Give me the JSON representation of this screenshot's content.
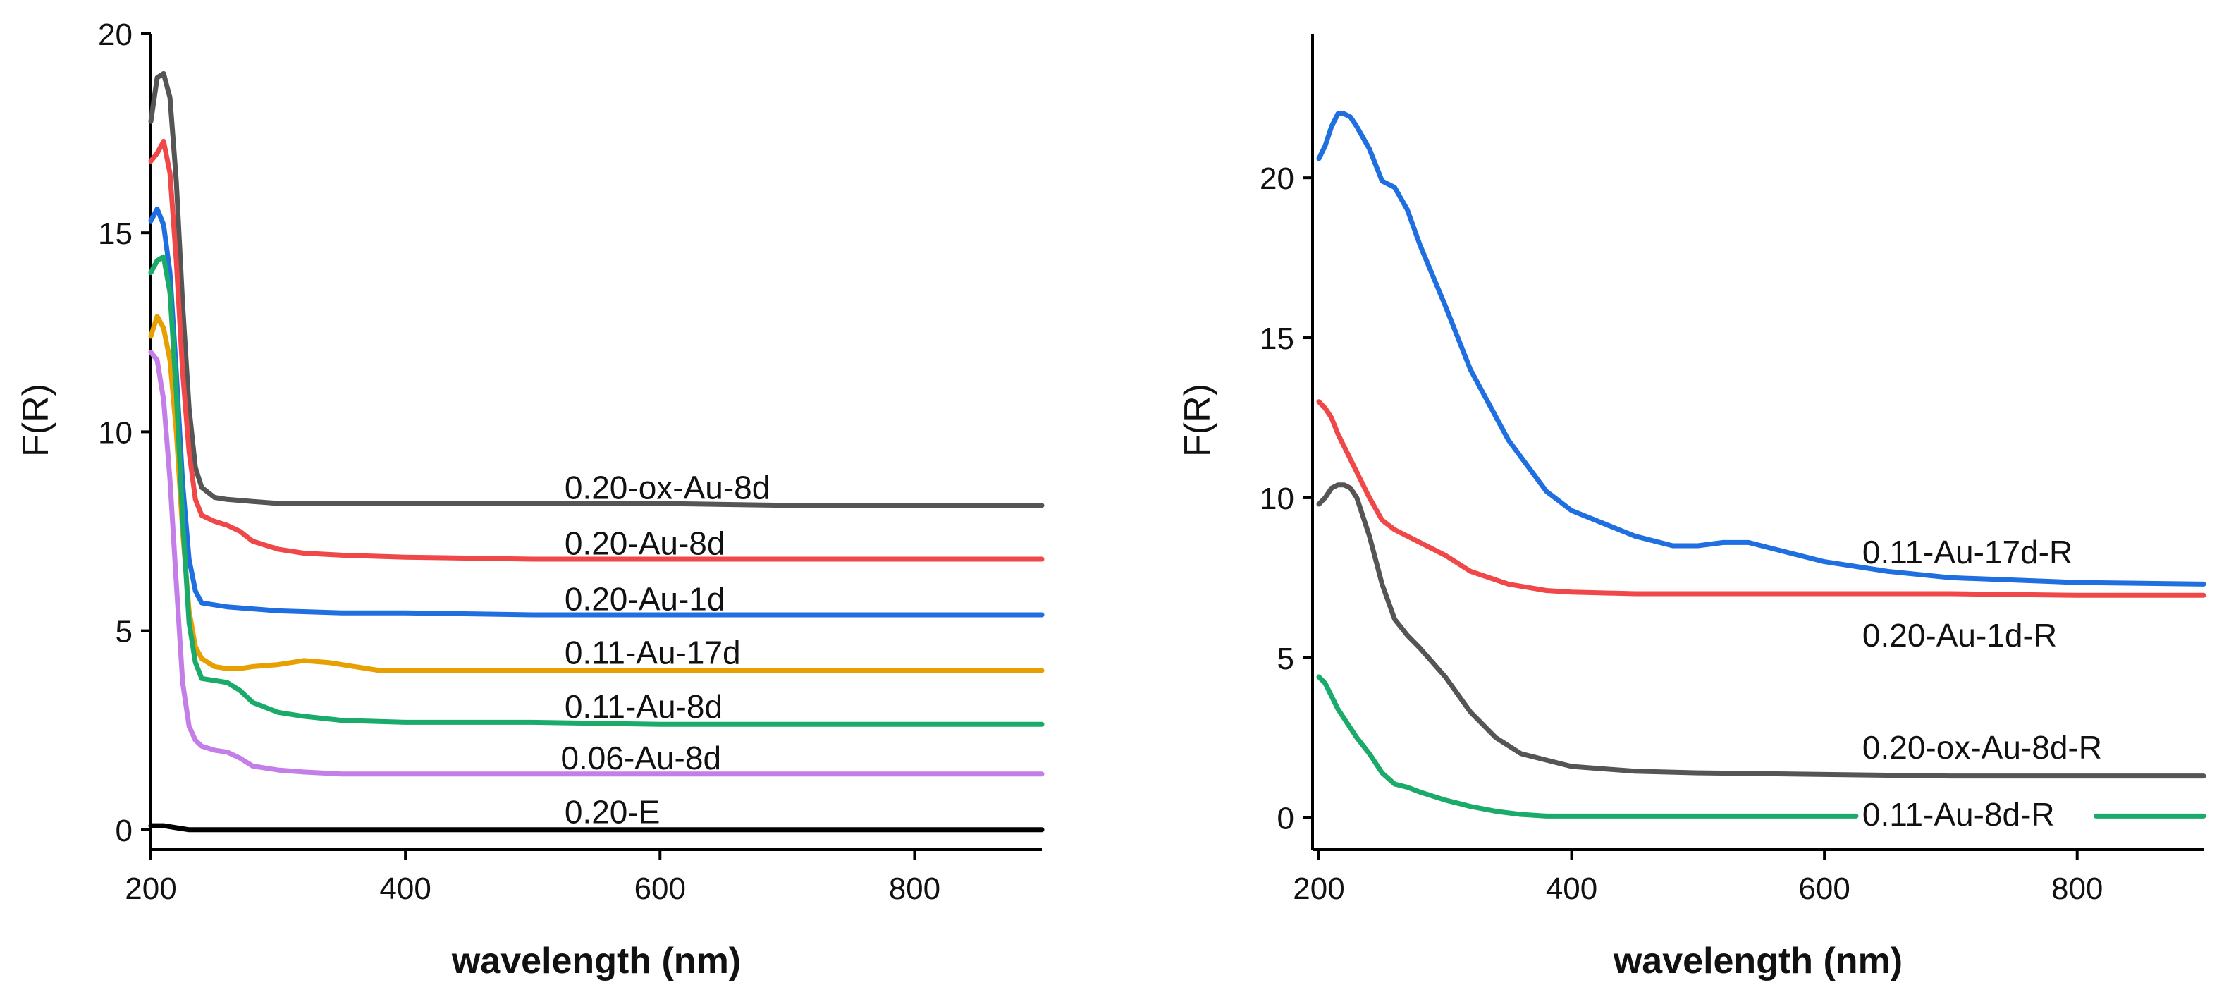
{
  "chart_data": [
    {
      "type": "line",
      "xlabel": "wavelength (nm)",
      "ylabel": "F(R)",
      "xlim": [
        200,
        900
      ],
      "ylim": [
        -0.5,
        20
      ],
      "xticks": [
        200,
        400,
        600,
        800
      ],
      "yticks": [
        0,
        5,
        10,
        15,
        20
      ],
      "grid": false,
      "series": [
        {
          "name": "0.20-ox-Au-8d",
          "color": "#555555",
          "label_at": [
            525,
            8.6
          ],
          "x": [
            200,
            205,
            210,
            215,
            220,
            225,
            230,
            235,
            240,
            250,
            260,
            280,
            300,
            350,
            400,
            500,
            600,
            700,
            800,
            900
          ],
          "y": [
            17.8,
            18.9,
            19.0,
            18.4,
            16.3,
            13.2,
            10.6,
            9.1,
            8.6,
            8.35,
            8.3,
            8.25,
            8.2,
            8.2,
            8.2,
            8.2,
            8.2,
            8.15,
            8.15,
            8.15
          ]
        },
        {
          "name": "0.20-Au-8d",
          "color": "#f04848",
          "label_at": [
            525,
            7.2
          ],
          "x": [
            200,
            205,
            210,
            215,
            220,
            225,
            230,
            235,
            240,
            250,
            260,
            270,
            280,
            300,
            320,
            350,
            400,
            500,
            600,
            700,
            800,
            900
          ],
          "y": [
            16.8,
            17.0,
            17.3,
            16.5,
            14.3,
            11.5,
            9.5,
            8.3,
            7.9,
            7.75,
            7.65,
            7.5,
            7.25,
            7.05,
            6.95,
            6.9,
            6.85,
            6.8,
            6.8,
            6.8,
            6.8,
            6.8
          ]
        },
        {
          "name": "0.20-Au-1d",
          "color": "#1f6fe0",
          "label_at": [
            525,
            5.8
          ],
          "x": [
            200,
            205,
            210,
            215,
            220,
            225,
            230,
            235,
            240,
            250,
            260,
            300,
            350,
            400,
            500,
            600,
            700,
            800,
            900
          ],
          "y": [
            15.3,
            15.6,
            15.2,
            14.0,
            11.5,
            8.7,
            6.8,
            6.0,
            5.7,
            5.65,
            5.6,
            5.5,
            5.45,
            5.45,
            5.4,
            5.4,
            5.4,
            5.4,
            5.4
          ]
        },
        {
          "name": "0.11-Au-17d",
          "color": "#e8a000",
          "label_at": [
            525,
            4.45
          ],
          "x": [
            200,
            205,
            210,
            215,
            220,
            225,
            230,
            235,
            240,
            250,
            260,
            270,
            280,
            300,
            320,
            340,
            360,
            380,
            400,
            500,
            600,
            700,
            800,
            900
          ],
          "y": [
            12.4,
            12.9,
            12.6,
            11.8,
            10.0,
            7.5,
            5.5,
            4.6,
            4.3,
            4.1,
            4.05,
            4.05,
            4.1,
            4.15,
            4.25,
            4.2,
            4.1,
            4.0,
            4.0,
            4.0,
            4.0,
            4.0,
            4.0,
            4.0
          ]
        },
        {
          "name": "0.11-Au-8d",
          "color": "#1aaa6a",
          "label_at": [
            525,
            3.1
          ],
          "x": [
            200,
            205,
            210,
            215,
            220,
            225,
            230,
            235,
            240,
            250,
            260,
            270,
            280,
            300,
            320,
            350,
            400,
            500,
            600,
            700,
            800,
            900
          ],
          "y": [
            14.0,
            14.3,
            14.4,
            13.5,
            11.0,
            7.8,
            5.2,
            4.2,
            3.8,
            3.75,
            3.7,
            3.5,
            3.2,
            2.95,
            2.85,
            2.75,
            2.7,
            2.7,
            2.65,
            2.65,
            2.65,
            2.65
          ]
        },
        {
          "name": "0.06-Au-8d",
          "color": "#c47ee8",
          "label_at": [
            522,
            1.8
          ],
          "x": [
            200,
            205,
            210,
            215,
            220,
            225,
            230,
            235,
            240,
            250,
            260,
            270,
            280,
            300,
            320,
            350,
            400,
            500,
            600,
            700,
            800,
            900
          ],
          "y": [
            12.0,
            11.8,
            10.8,
            8.8,
            6.2,
            3.7,
            2.6,
            2.25,
            2.1,
            2.0,
            1.95,
            1.8,
            1.6,
            1.5,
            1.45,
            1.4,
            1.4,
            1.4,
            1.4,
            1.4,
            1.4,
            1.4
          ]
        },
        {
          "name": "0.20-E",
          "color": "#000000",
          "label_at": [
            525,
            0.45
          ],
          "x": [
            200,
            210,
            220,
            230,
            240,
            300,
            400,
            500,
            600,
            700,
            800,
            900
          ],
          "y": [
            0.1,
            0.1,
            0.05,
            0.0,
            0.0,
            0.0,
            0.0,
            0.0,
            0.0,
            0.0,
            0.0,
            0.0
          ]
        }
      ]
    },
    {
      "type": "line",
      "xlabel": "wavelength (nm)",
      "ylabel": "F(R)",
      "xlim": [
        195,
        900
      ],
      "ylim": [
        -1,
        24.5
      ],
      "xticks": [
        200,
        400,
        600,
        800
      ],
      "yticks": [
        0,
        5,
        10,
        15,
        20
      ],
      "grid": false,
      "series": [
        {
          "name": "0.11-Au-17d-R",
          "color": "#1f6fe0",
          "label_at": [
            630,
            8.3
          ],
          "x": [
            200,
            205,
            210,
            215,
            220,
            225,
            230,
            240,
            250,
            260,
            270,
            280,
            300,
            320,
            350,
            380,
            400,
            450,
            480,
            500,
            520,
            540,
            560,
            580,
            600,
            650,
            700,
            800,
            900
          ],
          "y": [
            20.6,
            21.0,
            21.6,
            22.0,
            22.0,
            21.9,
            21.6,
            20.9,
            19.9,
            19.7,
            19.0,
            17.9,
            16.0,
            14.0,
            11.8,
            10.2,
            9.6,
            8.8,
            8.5,
            8.5,
            8.6,
            8.6,
            8.4,
            8.2,
            8.0,
            7.7,
            7.5,
            7.35,
            7.3
          ]
        },
        {
          "name": "0.20-Au-1d-R",
          "color": "#f04848",
          "label_at": [
            630,
            5.7
          ],
          "x": [
            200,
            205,
            210,
            215,
            220,
            230,
            240,
            250,
            260,
            280,
            300,
            320,
            350,
            380,
            400,
            450,
            500,
            600,
            700,
            800,
            900
          ],
          "y": [
            13.0,
            12.8,
            12.5,
            12.0,
            11.6,
            10.8,
            10.0,
            9.3,
            9.0,
            8.6,
            8.2,
            7.7,
            7.3,
            7.1,
            7.05,
            7.0,
            7.0,
            7.0,
            7.0,
            6.95,
            6.95
          ]
        },
        {
          "name": "0.20-ox-Au-8d-R",
          "color": "#555555",
          "label_at": [
            630,
            2.2
          ],
          "x": [
            200,
            205,
            210,
            215,
            220,
            225,
            230,
            240,
            250,
            260,
            270,
            280,
            300,
            320,
            340,
            360,
            380,
            400,
            450,
            500,
            600,
            700,
            800,
            900
          ],
          "y": [
            9.8,
            10.0,
            10.3,
            10.4,
            10.4,
            10.3,
            10.0,
            8.8,
            7.3,
            6.2,
            5.7,
            5.3,
            4.4,
            3.3,
            2.5,
            2.0,
            1.8,
            1.6,
            1.45,
            1.4,
            1.35,
            1.3,
            1.3,
            1.3
          ]
        },
        {
          "name": "0.11-Au-8d-R",
          "color": "#1aaa6a",
          "label_at": [
            630,
            0.1
          ],
          "x": [
            200,
            205,
            210,
            215,
            220,
            230,
            240,
            250,
            260,
            270,
            280,
            300,
            320,
            340,
            360,
            380,
            400,
            450,
            500,
            550,
            600,
            625
          ],
          "y": [
            4.4,
            4.2,
            3.8,
            3.4,
            3.1,
            2.5,
            2.0,
            1.4,
            1.05,
            0.95,
            0.8,
            0.55,
            0.35,
            0.2,
            0.1,
            0.05,
            0.05,
            0.05,
            0.05,
            0.05,
            0.05,
            0.05
          ],
          "x2": [
            815,
            900
          ],
          "y2": [
            0.05,
            0.05
          ]
        }
      ]
    }
  ]
}
